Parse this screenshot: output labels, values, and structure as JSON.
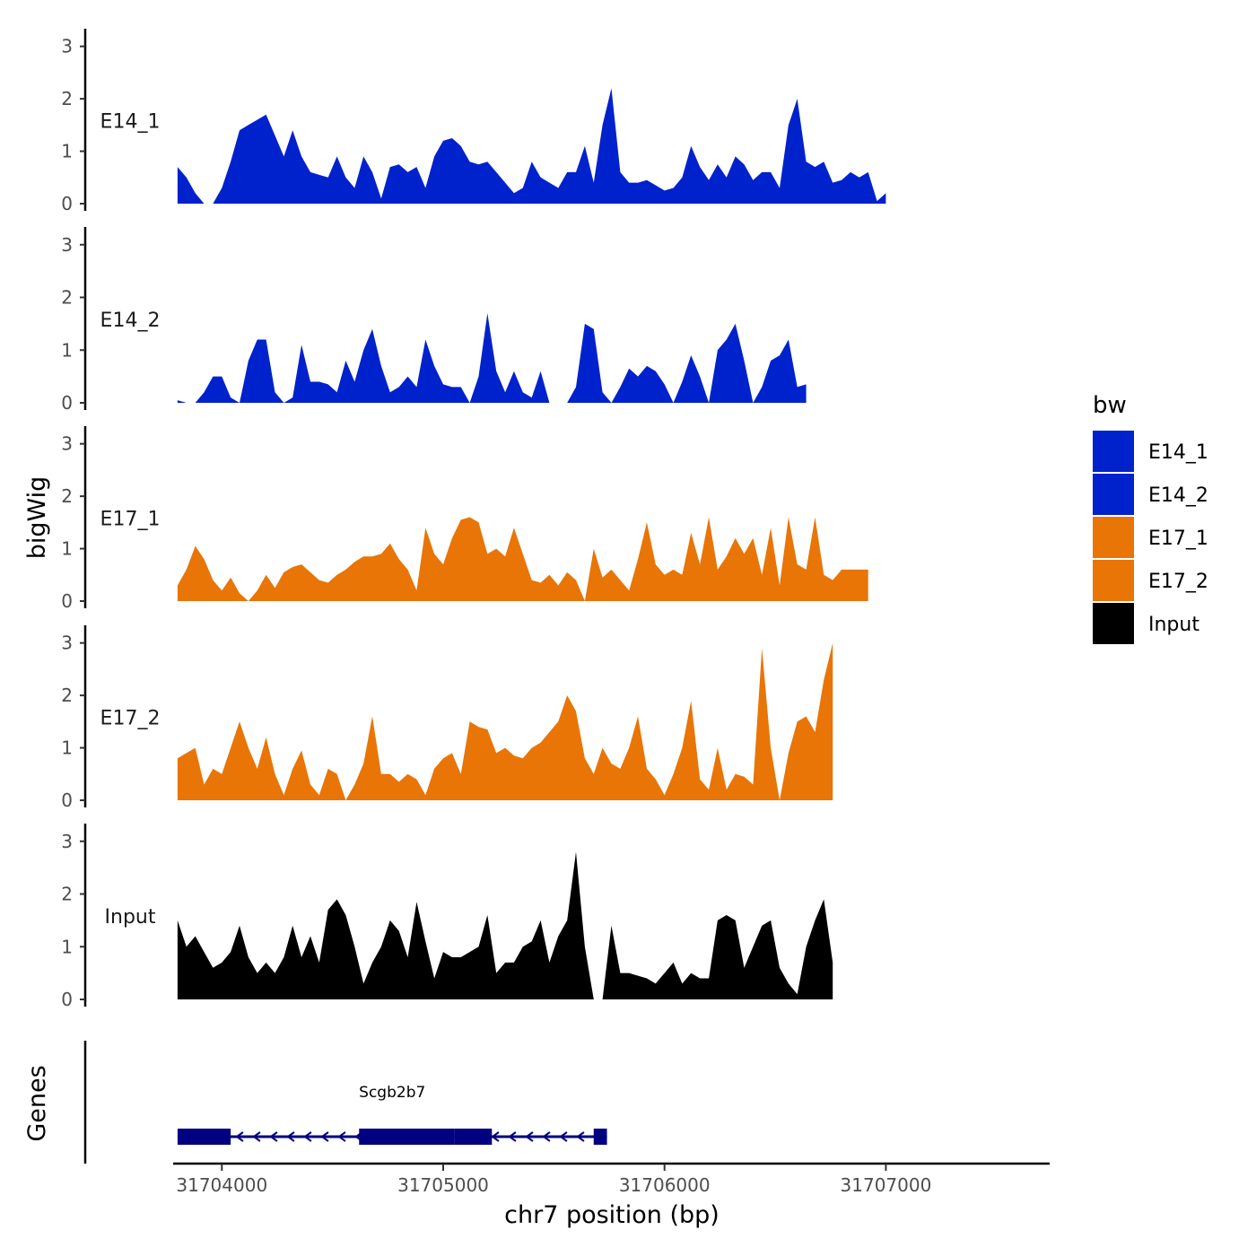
{
  "chart_data": {
    "type": "area",
    "ylabel": "bigWig",
    "xlabel": "chr7 position (bp)",
    "genes_label": "Genes",
    "xlim": [
      31703780,
      31707740
    ],
    "x_ticks": [
      31704000,
      31705000,
      31706000,
      31707000
    ],
    "x_tick_labels": [
      "31704000",
      "31705000",
      "31706000",
      "31707000"
    ],
    "ylim": [
      0,
      3.2
    ],
    "y_ticks": [
      0,
      1,
      2,
      3
    ],
    "y_tick_labels": [
      "0",
      "1",
      "2",
      "3"
    ],
    "legend_title": "bw",
    "legend": [
      {
        "name": "E14_1",
        "color": "#0022CC"
      },
      {
        "name": "E14_2",
        "color": "#0022CC"
      },
      {
        "name": "E17_1",
        "color": "#E87506"
      },
      {
        "name": "E17_2",
        "color": "#E87506"
      },
      {
        "name": "Input",
        "color": "#000000"
      }
    ],
    "bin_start": 31703800,
    "bin_step": 40,
    "series": [
      {
        "name": "E14_1",
        "color": "#0022CC",
        "values": [
          0.7,
          0.5,
          0.2,
          0.0,
          0.0,
          0.3,
          0.8,
          1.4,
          1.5,
          1.6,
          1.7,
          1.3,
          0.9,
          1.4,
          0.9,
          0.6,
          0.55,
          0.5,
          0.9,
          0.5,
          0.3,
          0.9,
          0.6,
          0.1,
          0.7,
          0.75,
          0.6,
          0.7,
          0.3,
          0.9,
          1.2,
          1.25,
          1.1,
          0.8,
          0.75,
          0.8,
          0.6,
          0.4,
          0.2,
          0.3,
          0.8,
          0.5,
          0.4,
          0.3,
          0.6,
          0.6,
          1.1,
          0.4,
          1.5,
          2.2,
          0.6,
          0.4,
          0.4,
          0.45,
          0.35,
          0.25,
          0.3,
          0.5,
          1.1,
          0.7,
          0.45,
          0.75,
          0.5,
          0.9,
          0.75,
          0.45,
          0.6,
          0.6,
          0.3,
          1.5,
          2.0,
          0.8,
          0.7,
          0.8,
          0.4,
          0.45,
          0.6,
          0.5,
          0.6,
          0.05,
          0.2
        ]
      },
      {
        "name": "E14_2",
        "color": "#0022CC",
        "values": [
          0.05,
          0.0,
          0.0,
          0.2,
          0.5,
          0.5,
          0.1,
          0.0,
          0.8,
          1.2,
          1.2,
          0.2,
          0.0,
          0.1,
          1.1,
          0.4,
          0.4,
          0.35,
          0.2,
          0.8,
          0.4,
          1.0,
          1.4,
          0.7,
          0.2,
          0.3,
          0.5,
          0.3,
          1.2,
          0.7,
          0.35,
          0.3,
          0.3,
          0.0,
          0.5,
          1.7,
          0.6,
          0.2,
          0.6,
          0.2,
          0.1,
          0.6,
          0.0,
          0.0,
          0.0,
          0.3,
          1.5,
          1.4,
          0.2,
          0.0,
          0.3,
          0.65,
          0.5,
          0.7,
          0.6,
          0.35,
          0.0,
          0.4,
          0.9,
          0.5,
          0.0,
          1.0,
          1.2,
          1.5,
          0.8,
          0.0,
          0.3,
          0.8,
          0.9,
          1.2,
          0.3,
          0.35
        ]
      },
      {
        "name": "E17_1",
        "color": "#E87506",
        "values": [
          0.3,
          0.6,
          1.05,
          0.8,
          0.4,
          0.2,
          0.45,
          0.15,
          0.0,
          0.2,
          0.5,
          0.25,
          0.55,
          0.65,
          0.7,
          0.55,
          0.4,
          0.35,
          0.5,
          0.6,
          0.75,
          0.85,
          0.85,
          0.9,
          1.1,
          0.8,
          0.6,
          0.2,
          1.4,
          0.9,
          0.7,
          1.2,
          1.55,
          1.6,
          1.5,
          0.9,
          1.0,
          0.85,
          1.4,
          0.9,
          0.4,
          0.35,
          0.5,
          0.3,
          0.55,
          0.4,
          0.0,
          1.0,
          0.45,
          0.6,
          0.4,
          0.2,
          0.8,
          1.5,
          0.7,
          0.5,
          0.6,
          0.5,
          1.3,
          0.7,
          1.6,
          0.6,
          0.85,
          1.2,
          0.9,
          1.2,
          0.5,
          1.4,
          0.3,
          1.6,
          0.7,
          0.6,
          1.6,
          0.5,
          0.4,
          0.6,
          0.6,
          0.6,
          0.6
        ]
      },
      {
        "name": "E17_2",
        "color": "#E87506",
        "values": [
          0.8,
          0.9,
          1.0,
          0.3,
          0.6,
          0.5,
          1.0,
          1.5,
          1.0,
          0.6,
          1.2,
          0.5,
          0.1,
          0.6,
          0.95,
          0.3,
          0.1,
          0.6,
          0.5,
          0.0,
          0.3,
          0.7,
          1.6,
          0.5,
          0.5,
          0.35,
          0.5,
          0.4,
          0.1,
          0.6,
          0.8,
          0.9,
          0.5,
          1.5,
          1.4,
          1.35,
          0.9,
          1.0,
          0.85,
          0.8,
          1.0,
          1.1,
          1.3,
          1.5,
          2.0,
          1.7,
          0.8,
          0.5,
          1.0,
          0.7,
          0.6,
          1.0,
          1.6,
          0.6,
          0.4,
          0.1,
          0.5,
          1.0,
          1.9,
          0.4,
          0.2,
          1.0,
          0.2,
          0.5,
          0.45,
          0.3,
          2.9,
          1.0,
          0.0,
          0.9,
          1.5,
          1.6,
          1.3,
          2.3,
          3.0
        ]
      },
      {
        "name": "Input",
        "color": "#000000",
        "values": [
          1.5,
          1.0,
          1.2,
          0.9,
          0.6,
          0.7,
          0.9,
          1.4,
          0.8,
          0.5,
          0.7,
          0.5,
          0.8,
          1.4,
          0.8,
          1.2,
          0.7,
          1.7,
          1.9,
          1.6,
          1.0,
          0.3,
          0.7,
          1.0,
          1.5,
          1.3,
          0.8,
          1.85,
          1.1,
          0.4,
          0.9,
          0.8,
          0.8,
          0.9,
          1.0,
          1.6,
          0.5,
          0.7,
          0.7,
          1.0,
          1.1,
          1.5,
          0.7,
          1.2,
          1.5,
          2.8,
          1.0,
          0.0,
          0.0,
          1.4,
          0.5,
          0.5,
          0.45,
          0.4,
          0.3,
          0.5,
          0.7,
          0.3,
          0.5,
          0.4,
          0.4,
          1.5,
          1.6,
          1.5,
          0.6,
          1.0,
          1.4,
          1.5,
          0.6,
          0.3,
          0.1,
          1.0,
          1.5,
          1.9,
          0.7
        ]
      }
    ],
    "genes": [
      {
        "name": "Scgb2b7",
        "strand": "-",
        "start": 31703800,
        "end": 31705740,
        "color": "#000080",
        "exons": [
          [
            31703800,
            31704040
          ],
          [
            31704620,
            31705050
          ],
          [
            31705050,
            31705220
          ],
          [
            31705680,
            31705740
          ]
        ]
      }
    ]
  }
}
